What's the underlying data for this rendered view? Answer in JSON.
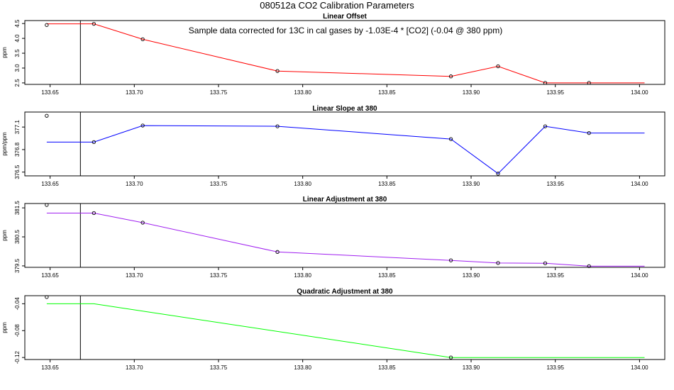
{
  "page": {
    "title": "080512a   CO2 Calibration Parameters"
  },
  "chart_data": [
    {
      "type": "line",
      "title": "Linear Offset",
      "annotation": "Sample data corrected for 13C in cal gases by -1.03E-4 * [CO2] (-0.04 @ 380 ppm)",
      "xlabel": "",
      "ylabel": "ppm",
      "xlim": [
        133.635,
        134.015
      ],
      "ylim": [
        2.45,
        4.6
      ],
      "x_ticks": [
        "133.65",
        "133.70",
        "133.75",
        "133.80",
        "133.85",
        "133.90",
        "133.95",
        "134.00"
      ],
      "y_ticks": [
        "2.5",
        "3.0",
        "3.5",
        "4.0",
        "4.5"
      ],
      "vline_x": 133.668,
      "color": "#ff0000",
      "line": {
        "x": [
          133.648,
          133.676,
          133.705,
          133.785,
          133.888,
          133.916,
          133.944,
          133.97,
          134.003
        ],
        "y": [
          4.49,
          4.49,
          3.97,
          2.9,
          2.72,
          3.06,
          2.5,
          2.5,
          2.5
        ]
      },
      "points": {
        "x": [
          133.648,
          133.676,
          133.705,
          133.785,
          133.888,
          133.916,
          133.944,
          133.97
        ],
        "y": [
          4.45,
          4.49,
          3.97,
          2.9,
          2.72,
          3.06,
          2.5,
          2.5
        ]
      },
      "grid": false
    },
    {
      "type": "line",
      "title": "Linear Slope at 380",
      "xlabel": "",
      "ylabel": "ppm/ppm",
      "xlim": [
        133.635,
        134.015
      ],
      "ylim": [
        376.45,
        377.3
      ],
      "x_ticks": [
        "133.65",
        "133.70",
        "133.75",
        "133.80",
        "133.85",
        "133.90",
        "133.95",
        "134.00"
      ],
      "y_ticks": [
        "376.5",
        "376.8",
        "377.1"
      ],
      "vline_x": 133.668,
      "color": "#0000ff",
      "line": {
        "x": [
          133.648,
          133.676,
          133.705,
          133.785,
          133.888,
          133.916,
          133.944,
          133.97,
          134.003
        ],
        "y": [
          376.9,
          376.9,
          377.12,
          377.11,
          376.94,
          376.48,
          377.11,
          377.02,
          377.02
        ]
      },
      "points": {
        "x": [
          133.648,
          133.676,
          133.705,
          133.785,
          133.888,
          133.916,
          133.944,
          133.97
        ],
        "y": [
          377.25,
          376.9,
          377.12,
          377.11,
          376.94,
          376.48,
          377.11,
          377.02
        ]
      },
      "grid": false
    },
    {
      "type": "line",
      "title": "Linear Adjustment at 380",
      "xlabel": "",
      "ylabel": "ppm",
      "xlim": [
        133.635,
        134.015
      ],
      "ylim": [
        379.45,
        381.65
      ],
      "x_ticks": [
        "133.65",
        "133.70",
        "133.75",
        "133.80",
        "133.85",
        "133.90",
        "133.95",
        "134.00"
      ],
      "y_ticks": [
        "379.5",
        "380.5",
        "381.5"
      ],
      "vline_x": 133.668,
      "color": "#a020f0",
      "line": {
        "x": [
          133.648,
          133.676,
          133.705,
          133.785,
          133.888,
          133.916,
          133.944,
          133.97,
          134.003
        ],
        "y": [
          381.32,
          381.32,
          380.99,
          379.98,
          379.69,
          379.6,
          379.59,
          379.49,
          379.49
        ]
      },
      "points": {
        "x": [
          133.648,
          133.676,
          133.705,
          133.785,
          133.888,
          133.916,
          133.944,
          133.97
        ],
        "y": [
          381.6,
          381.32,
          380.99,
          379.98,
          379.69,
          379.6,
          379.59,
          379.49
        ]
      },
      "grid": false
    },
    {
      "type": "line",
      "title": "Quadratic Adjustment at 380",
      "xlabel": "",
      "ylabel": "ppm",
      "xlim": [
        133.635,
        134.015
      ],
      "ylim": [
        -0.123,
        -0.028
      ],
      "x_ticks": [
        "133.65",
        "133.70",
        "133.75",
        "133.80",
        "133.85",
        "133.90",
        "133.95",
        "134.00"
      ],
      "y_ticks": [
        "-0.12",
        "-0.08",
        "-0.04"
      ],
      "vline_x": 133.668,
      "color": "#00ff00",
      "line": {
        "x": [
          133.648,
          133.676,
          133.888,
          134.003
        ],
        "y": [
          -0.04,
          -0.04,
          -0.12,
          -0.12
        ]
      },
      "points": {
        "x": [
          133.648,
          133.888
        ],
        "y": [
          -0.03,
          -0.12
        ]
      },
      "grid": false
    }
  ]
}
